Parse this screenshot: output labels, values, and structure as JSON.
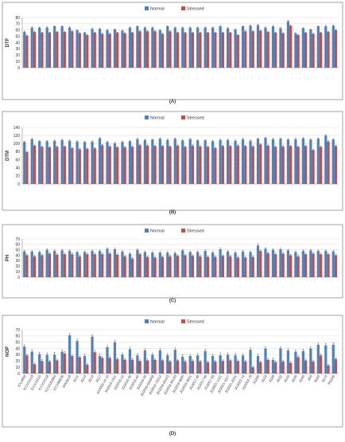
{
  "colors": {
    "normal": "#4f81bd",
    "stressed": "#c0504d"
  },
  "chart_data": [
    {
      "type": "bar",
      "caption": "(A)",
      "ylabel": "DTF",
      "ylim": [
        0,
        80
      ],
      "yticks": [
        0,
        10,
        20,
        30,
        40,
        50,
        60,
        70,
        80
      ],
      "legend_position": "top",
      "grid": true,
      "show_category_labels": false,
      "categories": [
        "ICC4958",
        "ICCV10110",
        "ICCV10115",
        "ICCV10118",
        "ICCV181664",
        "ICCV96836",
        "JAKI9218",
        "JG11",
        "JG14",
        "JG16",
        "JG17",
        "JG2003-14-16",
        "JG2016-1411",
        "JG2016-14",
        "JG2016-35",
        "JG2016-44",
        "JG2016-45",
        "JG2016-634958",
        "JG2016-74314",
        "JG2016-83103",
        "JG2016-96103",
        "JG2016-9605",
        "JG2016-9621",
        "JG2017-48",
        "JG2017-49",
        "JG2017-50",
        "JG2021-1221",
        "JG2021-1617",
        "JG2021-6301",
        "JG2022-74",
        "JG2022-78",
        "JG226",
        "JG24",
        "JG28",
        "JG32",
        "JG33",
        "JG36",
        "JG40",
        "JG6",
        "JG63",
        "JG74",
        "PG205"
      ],
      "series": [
        {
          "name": "Normal",
          "values": [
            57,
            64,
            64,
            64,
            66,
            66,
            64,
            60,
            56,
            62,
            62,
            60,
            61,
            59,
            64,
            66,
            64,
            64,
            60,
            66,
            64,
            64,
            64,
            64,
            64,
            64,
            66,
            63,
            61,
            66,
            67,
            68,
            64,
            66,
            63,
            74,
            55,
            63,
            61,
            66,
            66,
            67
          ],
          "errors": [
            1,
            1,
            1,
            1.5,
            1,
            1,
            1,
            1,
            1,
            1.5,
            1,
            1,
            1,
            1,
            1.5,
            1,
            1,
            1,
            1,
            1,
            1,
            1,
            1,
            1,
            1,
            1,
            1.5,
            1,
            1,
            1,
            1,
            1,
            1,
            1.5,
            1,
            2,
            1,
            1,
            1,
            1,
            1.5,
            1
          ]
        },
        {
          "name": "Stressed",
          "values": [
            51,
            57,
            56,
            56,
            57,
            57,
            58,
            55,
            52,
            56,
            54,
            54,
            56,
            55,
            56,
            58,
            58,
            58,
            54,
            58,
            56,
            56,
            56,
            56,
            56,
            56,
            56,
            56,
            52,
            58,
            58,
            59,
            57,
            56,
            55,
            67,
            52,
            56,
            54,
            56,
            57,
            60
          ],
          "errors": [
            1,
            1,
            1,
            1,
            1,
            1,
            1,
            1,
            1,
            1,
            1,
            1,
            1,
            1,
            1,
            1,
            1,
            1,
            1,
            1,
            1,
            1,
            1,
            1,
            1,
            1,
            1,
            1,
            1,
            1,
            1,
            1,
            1,
            1,
            1,
            1.5,
            1,
            1,
            1,
            1,
            1,
            1
          ]
        }
      ]
    },
    {
      "type": "bar",
      "caption": "(B)",
      "ylabel": "DTM",
      "ylim": [
        0,
        140
      ],
      "yticks": [
        0,
        20,
        40,
        60,
        80,
        100,
        120,
        140
      ],
      "legend_position": "top",
      "grid": true,
      "show_category_labels": false,
      "categories": [
        "ICC4958",
        "ICCV10110",
        "ICCV10115",
        "ICCV10118",
        "ICCV181664",
        "ICCV96836",
        "JAKI9218",
        "JG11",
        "JG14",
        "JG16",
        "JG17",
        "JG2003-14-16",
        "JG2016-1411",
        "JG2016-14",
        "JG2016-35",
        "JG2016-44",
        "JG2016-45",
        "JG2016-634958",
        "JG2016-74314",
        "JG2016-83103",
        "JG2016-96103",
        "JG2016-9605",
        "JG2016-9621",
        "JG2017-48",
        "JG2017-49",
        "JG2017-50",
        "JG2021-1221",
        "JG2021-1617",
        "JG2021-6301",
        "JG2022-74",
        "JG2022-78",
        "JG226",
        "JG24",
        "JG28",
        "JG32",
        "JG33",
        "JG36",
        "JG40",
        "JG6",
        "JG63",
        "JG74",
        "PG205"
      ],
      "series": [
        {
          "name": "Normal",
          "values": [
            104,
            111,
            106,
            106,
            107,
            109,
            107,
            105,
            104,
            105,
            113,
            104,
            101,
            104,
            106,
            111,
            109,
            110,
            112,
            109,
            112,
            108,
            111,
            108,
            108,
            106,
            109,
            109,
            107,
            111,
            107,
            112,
            114,
            111,
            112,
            110,
            111,
            113,
            110,
            112,
            120,
            110
          ],
          "errors": [
            2,
            2,
            2,
            2,
            2,
            2,
            2,
            2,
            2,
            2,
            2,
            2,
            2,
            2,
            2,
            2,
            2,
            2,
            2,
            2,
            2,
            2,
            2,
            2,
            2,
            2,
            2,
            2,
            2,
            2,
            2,
            2,
            2,
            2,
            2,
            2,
            2,
            2,
            2,
            2,
            2,
            2
          ]
        },
        {
          "name": "Stressed",
          "values": [
            79,
            95,
            92,
            91,
            92,
            93,
            89,
            86,
            87,
            88,
            96,
            93,
            91,
            91,
            92,
            96,
            95,
            94,
            94,
            93,
            95,
            92,
            95,
            93,
            92,
            89,
            94,
            94,
            95,
            94,
            93,
            98,
            95,
            92,
            93,
            94,
            92,
            94,
            84,
            92,
            105,
            94
          ],
          "errors": [
            2,
            2,
            2,
            2,
            2,
            2,
            2,
            2,
            2,
            2,
            2,
            2,
            2,
            2,
            2,
            2,
            2,
            2,
            2,
            2,
            2,
            2,
            2,
            2,
            2,
            2,
            2,
            2,
            2,
            2,
            2,
            2,
            2,
            2,
            2,
            2,
            2,
            2,
            2,
            2,
            2,
            2
          ]
        }
      ]
    },
    {
      "type": "bar",
      "caption": "(C)",
      "ylabel": "PH",
      "ylim": [
        0,
        70
      ],
      "yticks": [
        0,
        10,
        20,
        30,
        40,
        50,
        60,
        70
      ],
      "legend_position": "top",
      "grid": true,
      "show_category_labels": false,
      "categories": [
        "ICC4958",
        "ICCV10110",
        "ICCV10115",
        "ICCV10118",
        "ICCV181664",
        "ICCV96836",
        "JAKI9218",
        "JG11",
        "JG14",
        "JG16",
        "JG17",
        "JG2003-14-16",
        "JG2016-1411",
        "JG2016-14",
        "JG2016-35",
        "JG2016-44",
        "JG2016-45",
        "JG2016-634958",
        "JG2016-74314",
        "JG2016-83103",
        "JG2016-96103",
        "JG2016-9605",
        "JG2016-9621",
        "JG2017-48",
        "JG2017-49",
        "JG2017-50",
        "JG2021-1221",
        "JG2021-1617",
        "JG2021-6301",
        "JG2022-74",
        "JG2022-78",
        "JG226",
        "JG24",
        "JG28",
        "JG32",
        "JG33",
        "JG36",
        "JG40",
        "JG6",
        "JG63",
        "JG74",
        "PG205"
      ],
      "series": [
        {
          "name": "Normal",
          "values": [
            47,
            47,
            46,
            50,
            48,
            49,
            48,
            46,
            46,
            48,
            48,
            52,
            51,
            47,
            43,
            50,
            46,
            45,
            45,
            45,
            44,
            49,
            46,
            46,
            48,
            45,
            51,
            47,
            45,
            47,
            46,
            58,
            52,
            50,
            51,
            49,
            46,
            48,
            49,
            48,
            48,
            47
          ],
          "errors": [
            2,
            2,
            2,
            2,
            2,
            2,
            2,
            2,
            2,
            2,
            2,
            2,
            2,
            2,
            2,
            2,
            2,
            2,
            2,
            2,
            2,
            2,
            2,
            2,
            2,
            2,
            2,
            2,
            2,
            2,
            2,
            3,
            2,
            2,
            2,
            2,
            2,
            2,
            2,
            2,
            2,
            2
          ]
        },
        {
          "name": "Stressed",
          "values": [
            40,
            38,
            40,
            43,
            41,
            42,
            42,
            38,
            42,
            42,
            42,
            43,
            41,
            38,
            34,
            42,
            37,
            36,
            37,
            38,
            39,
            40,
            39,
            38,
            37,
            37,
            39,
            38,
            36,
            36,
            37,
            48,
            44,
            42,
            43,
            40,
            38,
            42,
            43,
            42,
            42,
            40
          ],
          "errors": [
            2,
            2,
            2,
            2,
            2,
            2,
            2,
            2,
            2,
            2,
            2,
            2,
            2,
            2,
            2,
            2,
            2,
            2,
            2,
            2,
            2,
            2,
            2,
            2,
            2,
            2,
            2,
            2,
            2,
            2,
            2,
            2,
            2,
            2,
            2,
            2,
            2,
            2,
            2,
            2,
            2,
            2
          ]
        }
      ]
    },
    {
      "type": "bar",
      "caption": "(D)",
      "ylabel": "NOP",
      "ylim": [
        0,
        70
      ],
      "yticks": [
        0,
        10,
        20,
        30,
        40,
        50,
        60,
        70
      ],
      "legend_position": "top",
      "grid": true,
      "show_category_labels": true,
      "categories": [
        "ICC4958",
        "ICCV10110",
        "ICCV10115",
        "ICCV10118",
        "ICCV181664",
        "ICCV96836",
        "JAKI9218",
        "JG11",
        "JG14",
        "JG16",
        "JG17",
        "JG2003-14-16",
        "JG2016-1411",
        "JG2016-14",
        "JG2016-35",
        "JG2016-44",
        "JG2016-45",
        "JG2016-634958",
        "JG2016-74314",
        "JG2016-83103",
        "JG2016-96103",
        "JG2016-9605",
        "JG2016-9621",
        "JG2017-48",
        "JG2017-49",
        "JG2017-50",
        "JG2021-1221",
        "JG2021-1617",
        "JG2021-6301",
        "JG2022-74",
        "JG2022-78",
        "JG226",
        "JG24",
        "JG28",
        "JG32",
        "JG33",
        "JG36",
        "JG40",
        "JG6",
        "JG63",
        "JG74",
        "PG205"
      ],
      "series": [
        {
          "name": "Normal",
          "values": [
            43,
            35,
            31,
            30,
            30,
            35,
            61,
            52,
            28,
            59,
            28,
            42,
            50,
            30,
            39,
            29,
            37,
            30,
            37,
            29,
            38,
            27,
            28,
            29,
            36,
            28,
            29,
            30,
            29,
            29,
            38,
            28,
            40,
            22,
            40,
            37,
            35,
            36,
            40,
            46,
            45,
            46
          ],
          "errors": [
            3,
            3,
            3,
            3,
            4,
            3,
            3,
            3,
            3,
            3,
            3,
            3,
            3,
            3,
            3,
            3,
            3,
            3,
            3,
            3,
            3,
            3,
            3,
            3,
            3,
            3,
            4,
            3,
            3,
            3,
            3,
            3,
            3,
            3,
            3,
            3,
            3,
            3,
            3,
            3,
            3,
            3
          ]
        },
        {
          "name": "Stressed",
          "values": [
            29,
            15,
            20,
            19,
            21,
            32,
            28,
            26,
            14,
            34,
            25,
            25,
            23,
            22,
            22,
            20,
            21,
            22,
            21,
            19,
            21,
            19,
            20,
            19,
            18,
            19,
            20,
            21,
            20,
            19,
            10,
            18,
            22,
            18,
            19,
            17,
            26,
            21,
            19,
            29,
            13,
            23
          ],
          "errors": [
            2,
            2,
            2,
            2,
            2,
            3,
            2,
            2,
            2,
            3,
            2,
            2,
            2,
            2,
            2,
            2,
            2,
            2,
            2,
            2,
            2,
            2,
            2,
            2,
            2,
            2,
            2,
            2,
            2,
            2,
            2,
            2,
            2,
            2,
            2,
            2,
            2,
            2,
            2,
            2,
            2,
            2
          ]
        }
      ]
    }
  ]
}
